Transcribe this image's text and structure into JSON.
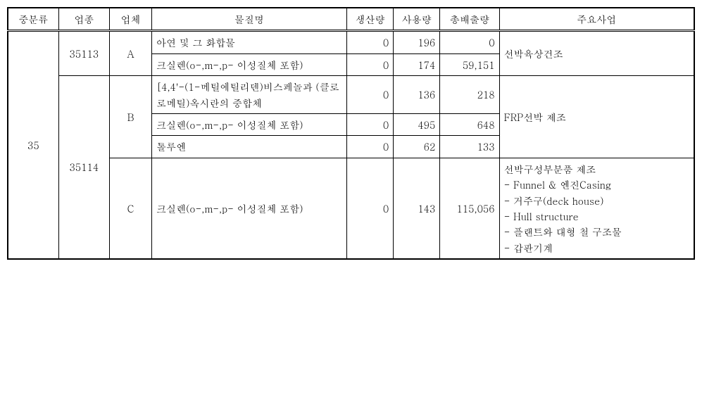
{
  "headers": {
    "mid": "중분류",
    "industry": "업종",
    "company": "업체",
    "substance": "물질명",
    "production": "생산량",
    "usage": "사용량",
    "emission": "총배출량",
    "business": "주요사업"
  },
  "mid_class": "35",
  "groups": [
    {
      "industry": "35113",
      "company": "A",
      "business": "선박육상건조",
      "rows": [
        {
          "substance": "아연 및 그 화합물",
          "production": "0",
          "usage": "196",
          "emission": "0"
        },
        {
          "substance": "크실렌(o-,m-,p- 이성질체 포함)",
          "production": "0",
          "usage": "174",
          "emission": "59,151"
        }
      ]
    },
    {
      "industry": "35114",
      "company": "B",
      "business": "FRP선박 제조",
      "rows": [
        {
          "substance": "[4,4'-(1-메틸에틸리덴)비스페놀과 (클로로메틸)옥시란의 중합체",
          "production": "0",
          "usage": "136",
          "emission": "218"
        },
        {
          "substance": "크실렌(o-,m-,p- 이성질체 포함)",
          "production": "0",
          "usage": "495",
          "emission": "648"
        },
        {
          "substance": "톨루엔",
          "production": "0",
          "usage": "62",
          "emission": "133"
        }
      ]
    },
    {
      "industry": "35114",
      "company": "C",
      "business": "선박구성부분품 제조\n- Funnel & 엔진Casing\n- 거주구(deck house)\n- Hull structure\n- 플랜트와 대형 철 구조물\n- 갑판기계",
      "rows": [
        {
          "substance": "크실렌(o-,m-,p- 이성질체 포함)",
          "production": "0",
          "usage": "143",
          "emission": "115,056"
        }
      ]
    }
  ]
}
